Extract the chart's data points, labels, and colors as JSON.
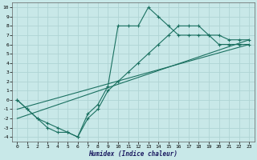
{
  "xlabel": "Humidex (Indice chaleur)",
  "bg_color": "#c8e8e8",
  "grid_color": "#b0d4d4",
  "line_color": "#1a7060",
  "xlim": [
    -0.5,
    23.5
  ],
  "ylim": [
    -4.5,
    10.5
  ],
  "xticks": [
    0,
    1,
    2,
    3,
    4,
    5,
    6,
    7,
    8,
    9,
    10,
    11,
    12,
    13,
    14,
    15,
    16,
    17,
    18,
    19,
    20,
    21,
    22,
    23
  ],
  "yticks": [
    -4,
    -3,
    -2,
    -1,
    0,
    1,
    2,
    3,
    4,
    5,
    6,
    7,
    8,
    9,
    10
  ],
  "line1_x": [
    0,
    1,
    2,
    3,
    4,
    5,
    6,
    7,
    8,
    9,
    10,
    11,
    12,
    13,
    14,
    15,
    16,
    17,
    18,
    19,
    20,
    21,
    22,
    23
  ],
  "line1_y": [
    0,
    -1,
    -2,
    -2.5,
    -3,
    -3.5,
    -4,
    -1.5,
    -0.5,
    1.5,
    8,
    8,
    8,
    10,
    9,
    8,
    7,
    7,
    7,
    7,
    6,
    6,
    6,
    6
  ],
  "line2_x": [
    0,
    1,
    2,
    3,
    4,
    5,
    6,
    7,
    8,
    9,
    10,
    11,
    12,
    13,
    14,
    15,
    16,
    17,
    18,
    19,
    20,
    21,
    22,
    23
  ],
  "line2_y": [
    0,
    -1,
    -2,
    -3,
    -3.5,
    -3.5,
    -4,
    -2,
    -1,
    1,
    2,
    3,
    4,
    5,
    6,
    7,
    8,
    8,
    8,
    7,
    7,
    6.5,
    6.5,
    6.5
  ],
  "line3_x": [
    0,
    23
  ],
  "line3_y": [
    -1,
    6
  ],
  "line4_x": [
    0,
    23
  ],
  "line4_y": [
    -2,
    6.5
  ]
}
